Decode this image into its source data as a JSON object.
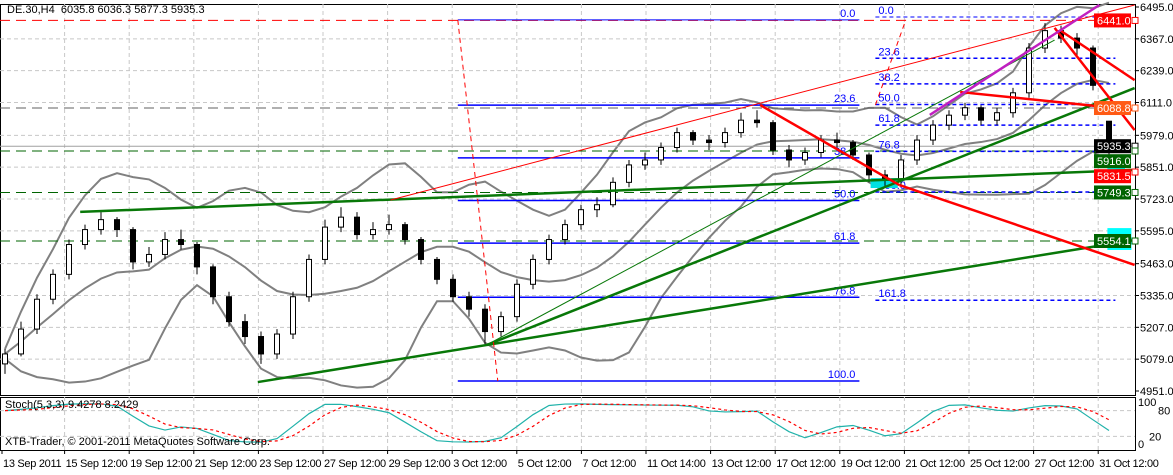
{
  "header": {
    "symbol": "DE.30,H4",
    "ohlc": "6035.8 6036.3 5877.3 5935.3"
  },
  "indicator_label": "Stoch(5,3,3) 9.4278 8.2429",
  "copyright": "XTB-Trader, © 2001-2011 MetaQuotes Software Corp.",
  "chart_data": {
    "type": "candlestick",
    "price_axis": {
      "min": 4951,
      "max": 6495,
      "ticks": [
        "6495.0",
        "6367.0",
        "6239.0",
        "6111.0",
        "5979.0",
        "5851.0",
        "5723.0",
        "5595.0",
        "5463.0",
        "5335.0",
        "5207.0",
        "5079.0",
        "4951.0"
      ]
    },
    "time_axis": [
      "13 Sep 2011",
      "15 Sep 12:00",
      "19 Sep 12:00",
      "21 Sep 12:00",
      "23 Sep 12:00",
      "27 Sep 12:00",
      "29 Sep 12:00",
      "3 Oct 12:00",
      "5 Oct 12:00",
      "7 Oct 12:00",
      "11 Oct 14:00",
      "13 Oct 12:00",
      "17 Oct 12:00",
      "19 Oct 12:00",
      "21 Oct 12:00",
      "25 Oct 12:00",
      "27 Oct 12:00",
      "31 Oct 12:00"
    ],
    "candles": [
      [
        5060,
        5120,
        5020,
        5100
      ],
      [
        5100,
        5230,
        5090,
        5200
      ],
      [
        5200,
        5340,
        5180,
        5320
      ],
      [
        5320,
        5440,
        5300,
        5420
      ],
      [
        5420,
        5560,
        5400,
        5540
      ],
      [
        5540,
        5620,
        5520,
        5600
      ],
      [
        5600,
        5670,
        5580,
        5640
      ],
      [
        5640,
        5650,
        5570,
        5600
      ],
      [
        5600,
        5610,
        5440,
        5470
      ],
      [
        5470,
        5530,
        5450,
        5500
      ],
      [
        5500,
        5590,
        5480,
        5560
      ],
      [
        5560,
        5600,
        5520,
        5540
      ],
      [
        5540,
        5550,
        5420,
        5450
      ],
      [
        5450,
        5460,
        5300,
        5330
      ],
      [
        5330,
        5350,
        5210,
        5230
      ],
      [
        5230,
        5260,
        5140,
        5170
      ],
      [
        5170,
        5190,
        5060,
        5100
      ],
      [
        5100,
        5200,
        5080,
        5180
      ],
      [
        5180,
        5350,
        5160,
        5330
      ],
      [
        5330,
        5500,
        5310,
        5480
      ],
      [
        5480,
        5640,
        5460,
        5610
      ],
      [
        5610,
        5690,
        5590,
        5650
      ],
      [
        5650,
        5670,
        5560,
        5580
      ],
      [
        5580,
        5630,
        5560,
        5600
      ],
      [
        5600,
        5660,
        5580,
        5620
      ],
      [
        5620,
        5630,
        5540,
        5560
      ],
      [
        5560,
        5570,
        5460,
        5480
      ],
      [
        5480,
        5490,
        5380,
        5400
      ],
      [
        5400,
        5420,
        5310,
        5330
      ],
      [
        5330,
        5350,
        5250,
        5280
      ],
      [
        5280,
        5300,
        5140,
        5190
      ],
      [
        5190,
        5270,
        5170,
        5250
      ],
      [
        5250,
        5400,
        5230,
        5380
      ],
      [
        5380,
        5500,
        5360,
        5480
      ],
      [
        5480,
        5580,
        5460,
        5560
      ],
      [
        5560,
        5640,
        5540,
        5620
      ],
      [
        5620,
        5700,
        5600,
        5680
      ],
      [
        5680,
        5730,
        5650,
        5700
      ],
      [
        5700,
        5810,
        5690,
        5790
      ],
      [
        5790,
        5880,
        5770,
        5860
      ],
      [
        5860,
        5910,
        5840,
        5880
      ],
      [
        5880,
        5950,
        5860,
        5930
      ],
      [
        5930,
        6010,
        5910,
        5990
      ],
      [
        5990,
        6000,
        5940,
        5960
      ],
      [
        5960,
        5980,
        5920,
        5950
      ],
      [
        5950,
        6010,
        5930,
        5990
      ],
      [
        5990,
        6070,
        5970,
        6040
      ],
      [
        6040,
        6080,
        6010,
        6030
      ],
      [
        6030,
        6040,
        5900,
        5920
      ],
      [
        5920,
        5940,
        5850,
        5880
      ],
      [
        5880,
        5930,
        5860,
        5910
      ],
      [
        5910,
        5980,
        5890,
        5960
      ],
      [
        5960,
        5990,
        5930,
        5950
      ],
      [
        5950,
        5960,
        5880,
        5900
      ],
      [
        5900,
        5910,
        5790,
        5820
      ],
      [
        5820,
        5840,
        5770,
        5800
      ],
      [
        5800,
        5900,
        5780,
        5880
      ],
      [
        5880,
        5980,
        5860,
        5960
      ],
      [
        5960,
        6040,
        5940,
        6020
      ],
      [
        6020,
        6080,
        6000,
        6060
      ],
      [
        6060,
        6110,
        6040,
        6090
      ],
      [
        6090,
        6100,
        6020,
        6040
      ],
      [
        6040,
        6090,
        6020,
        6070
      ],
      [
        6070,
        6170,
        6050,
        6150
      ],
      [
        6150,
        6350,
        6130,
        6330
      ],
      [
        6330,
        6430,
        6310,
        6400
      ],
      [
        6400,
        6420,
        6350,
        6370
      ],
      [
        6370,
        6390,
        6300,
        6330
      ],
      [
        6330,
        6340,
        6160,
        6180
      ],
      [
        6035.8,
        6036.3,
        5877.3,
        5935.3
      ]
    ],
    "horizontal_levels": [
      {
        "price": 6441.0,
        "label": "6441.0",
        "color": "#ff0000",
        "dash": true
      },
      {
        "price": 6088.8,
        "label": "6088.8",
        "color": "#ff5a14",
        "line": "#606060",
        "dash": true
      },
      {
        "price": 5935.3,
        "label": "5935.3",
        "color": "#000000",
        "line": "#a0a0a0",
        "dash": false
      },
      {
        "price": 5916.0,
        "label": "5916.0",
        "color": "#006400",
        "dash": true
      },
      {
        "price": 5831.5,
        "label": "5831.5",
        "color": "#ff0000",
        "line": null,
        "dash": false
      },
      {
        "price": 5749.3,
        "label": "5749.3",
        "color": "#006400",
        "line": "#006400",
        "dash": true
      },
      {
        "price": 5554.1,
        "label": "5554.1",
        "color": "#006400",
        "dash": true
      }
    ],
    "trendlines": [
      {
        "from": [
          15.8,
          4987
        ],
        "to": [
          70.6,
          5558
        ],
        "color": "#087808",
        "width": 2.5
      },
      {
        "from": [
          4.7,
          5671
        ],
        "to": [
          70.6,
          5840
        ],
        "color": "#087808",
        "width": 2.5
      },
      {
        "from": [
          30.1,
          5136
        ],
        "to": [
          70.6,
          6169
        ],
        "color": "#087808",
        "width": 2.5
      },
      {
        "from": [
          30.1,
          5136
        ],
        "to": [
          65.6,
          6362
        ],
        "color": "#087808",
        "width": 1
      },
      {
        "from": [
          24.1,
          5719
        ],
        "to": [
          70.6,
          6503
        ],
        "color": "#ff0000",
        "width": 1
      },
      {
        "from": [
          47.2,
          6101
        ],
        "to": [
          55.9,
          5779
        ],
        "color": "#ff0000",
        "width": 2.5
      },
      {
        "from": [
          55.9,
          5779
        ],
        "to": [
          70.6,
          5458
        ],
        "color": "#ff0000",
        "width": 2.5
      },
      {
        "from": [
          59.7,
          6153
        ],
        "to": [
          70.6,
          6081
        ],
        "color": "#ff0000",
        "width": 2.5
      },
      {
        "from": [
          65.6,
          6411
        ],
        "to": [
          70.6,
          6000
        ],
        "color": "#ff0000",
        "width": 2.5
      },
      {
        "from": [
          65.9,
          6403
        ],
        "to": [
          70.6,
          6201
        ],
        "color": "#ff0000",
        "width": 2.5
      },
      {
        "from": [
          57.8,
          6061
        ],
        "to": [
          68.4,
          6503
        ],
        "color": "#c020c0",
        "width": 2.5
      },
      {
        "from": [
          28.3,
          6443
        ],
        "to": [
          30.8,
          4991
        ],
        "color": "#ff0000",
        "width": 1,
        "dash": true
      },
      {
        "from": [
          54.4,
          6101
        ],
        "to": [
          56.3,
          6443
        ],
        "color": "#ff0000",
        "width": 1,
        "dash": true
      }
    ],
    "fibonacci": [
      {
        "from_bar": 28.3,
        "to_bar": 53.4,
        "high": 6443,
        "low": 4991,
        "style": "solid",
        "levels": [
          {
            "ratio": 0,
            "label": "0.0"
          },
          {
            "ratio": 0.236,
            "label": "23.6"
          },
          {
            "ratio": 0.382,
            "label": "38.2"
          },
          {
            "ratio": 0.5,
            "label": "50.0"
          },
          {
            "ratio": 0.618,
            "label": "61.8"
          },
          {
            "ratio": 0.768,
            "label": "76.8"
          },
          {
            "ratio": 1,
            "label": "100.0"
          }
        ]
      },
      {
        "from_bar": 54.4,
        "to_bar": 69.4,
        "high": 6455,
        "low": 5751,
        "style": "dashed",
        "levels": [
          {
            "ratio": 0,
            "label": "0.0"
          },
          {
            "ratio": 0.236,
            "label": "23.6"
          },
          {
            "ratio": 0.382,
            "label": "38.2"
          },
          {
            "ratio": 0.5,
            "label": "50.0"
          },
          {
            "ratio": 0.618,
            "label": "61.8"
          },
          {
            "ratio": 0.768,
            "label": "76.8"
          },
          {
            "ratio": 1,
            "label": "100.0"
          },
          {
            "ratio": 1.618,
            "label": "161.8"
          }
        ]
      }
    ],
    "zones": [
      {
        "from": [
          68.9,
          5880
        ],
        "to": [
          70.0,
          5791
        ],
        "color": "#00ffff"
      },
      {
        "from": [
          68.9,
          5606
        ],
        "to": [
          70.4,
          5518
        ],
        "color": "#00ffff"
      },
      {
        "from": [
          54.1,
          5807
        ],
        "to": [
          55.8,
          5767
        ],
        "color": "#00e0e0"
      }
    ],
    "stochastic": {
      "k": 5,
      "d": 3,
      "slowing": 3,
      "levels": [
        "100",
        "80",
        "20",
        "0"
      ],
      "k_color": "#20b2aa",
      "d_color": "#ff0000"
    }
  }
}
